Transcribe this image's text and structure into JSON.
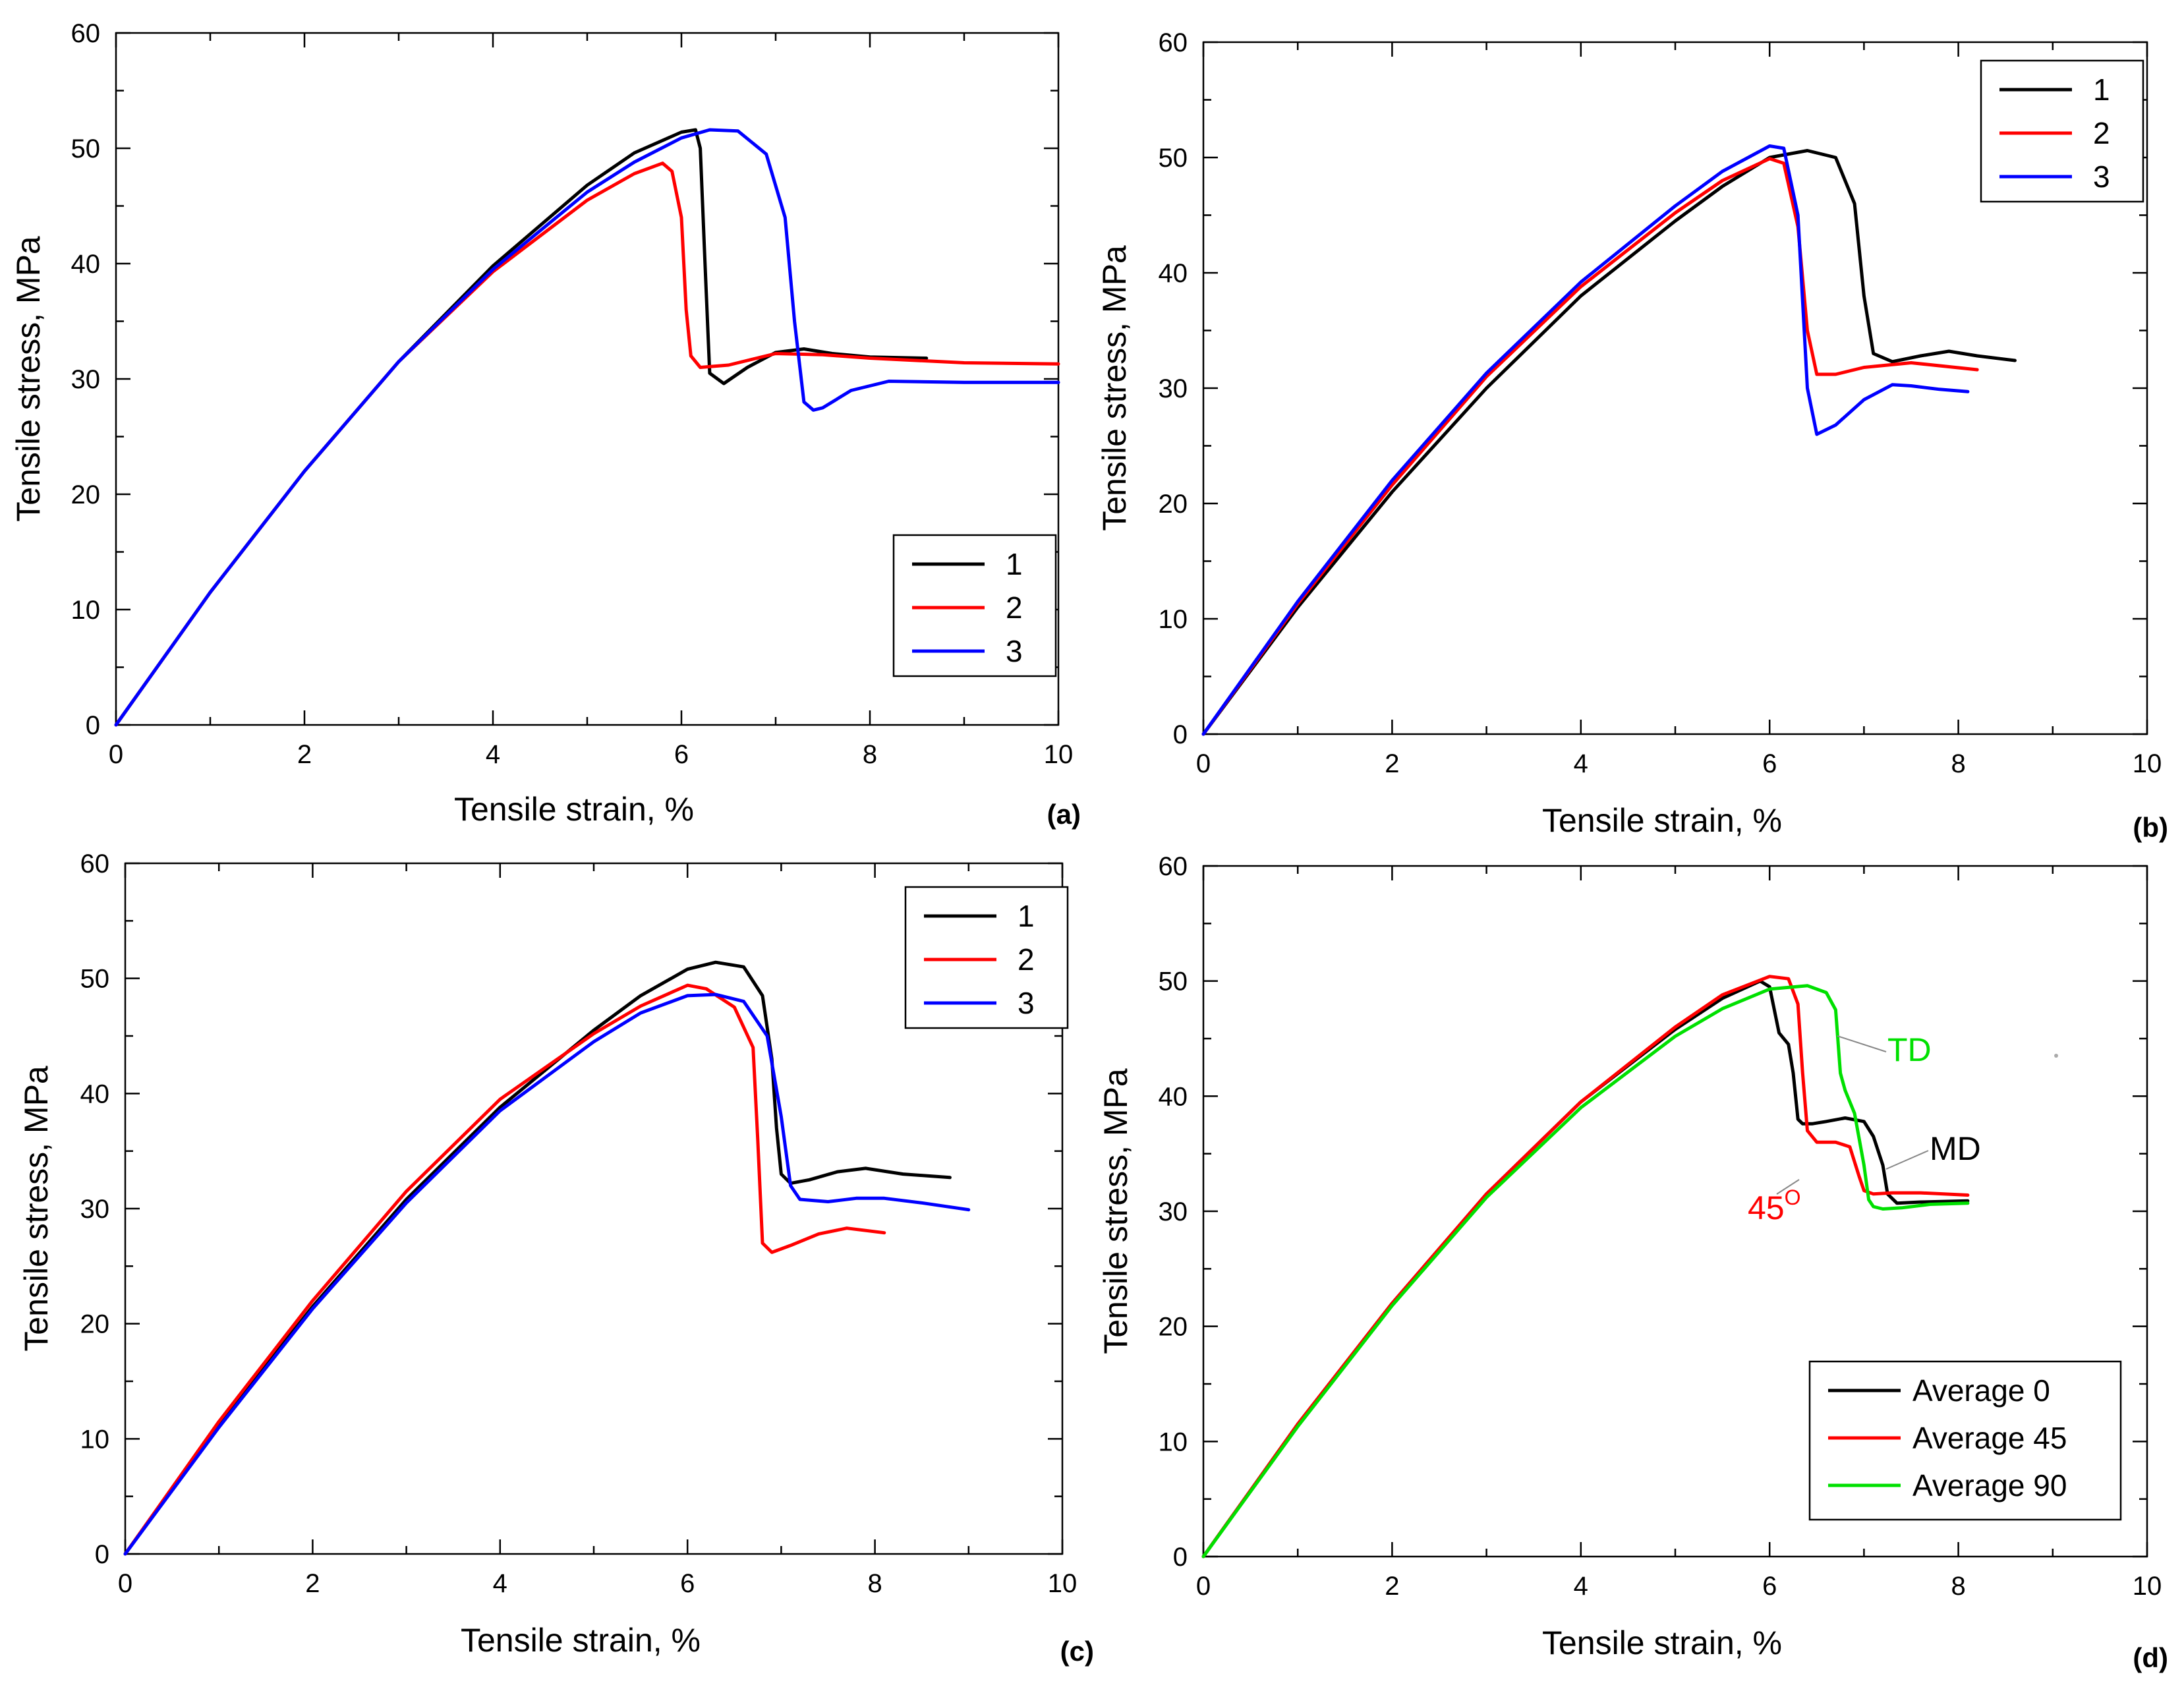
{
  "chart_data": [
    {
      "type": "line",
      "panel_label": "(a)",
      "xlabel": "Tensile strain, %",
      "ylabel": "Tensile stress, MPa",
      "xlim": [
        0,
        10
      ],
      "ylim": [
        0,
        60
      ],
      "xticks": [
        "0",
        "2",
        "4",
        "6",
        "8",
        "10"
      ],
      "yticks": [
        "0",
        "10",
        "20",
        "30",
        "40",
        "50",
        "60"
      ],
      "legend_position": "lower-right",
      "annotations": [],
      "series": [
        {
          "name": "1",
          "color": "#000000",
          "x": [
            0,
            1,
            2,
            3,
            4,
            5,
            5.5,
            6,
            6.15,
            6.2,
            6.25,
            6.3,
            6.45,
            6.7,
            7.0,
            7.3,
            7.6,
            8.0,
            8.6
          ],
          "y": [
            0,
            11.5,
            22,
            31.5,
            39.8,
            46.8,
            49.6,
            51.4,
            51.6,
            50,
            40,
            30.5,
            29.6,
            31,
            32.3,
            32.6,
            32.2,
            31.9,
            31.8
          ]
        },
        {
          "name": "2",
          "color": "#ff0000",
          "x": [
            0,
            1,
            2,
            3,
            4,
            5,
            5.5,
            5.8,
            5.9,
            6.0,
            6.05,
            6.1,
            6.2,
            6.5,
            7.0,
            7.5,
            8.0,
            9.0,
            10.0
          ],
          "y": [
            0,
            11.5,
            22,
            31.5,
            39.3,
            45.5,
            47.8,
            48.7,
            48,
            44,
            36,
            32,
            31,
            31.2,
            32.2,
            32.1,
            31.8,
            31.4,
            31.3
          ]
        },
        {
          "name": "3",
          "color": "#0000ff",
          "x": [
            0,
            1,
            2,
            3,
            4,
            5,
            5.5,
            6,
            6.3,
            6.6,
            6.9,
            7.1,
            7.2,
            7.3,
            7.4,
            7.5,
            7.8,
            8.2,
            9.0,
            10.0
          ],
          "y": [
            0,
            11.5,
            22,
            31.5,
            39.5,
            46.2,
            48.8,
            50.9,
            51.6,
            51.5,
            49.5,
            44,
            35,
            28,
            27.3,
            27.5,
            29,
            29.8,
            29.7,
            29.7
          ]
        }
      ]
    },
    {
      "type": "line",
      "panel_label": "(b)",
      "xlabel": "Tensile strain, %",
      "ylabel": "Tensile stress, MPa",
      "xlim": [
        0,
        10
      ],
      "ylim": [
        0,
        60
      ],
      "xticks": [
        "0",
        "2",
        "4",
        "6",
        "8",
        "10"
      ],
      "yticks": [
        "0",
        "10",
        "20",
        "30",
        "40",
        "50",
        "60"
      ],
      "legend_position": "top-right",
      "annotations": [],
      "series": [
        {
          "name": "1",
          "color": "#000000",
          "x": [
            0,
            1,
            2,
            3,
            4,
            5,
            5.5,
            6,
            6.4,
            6.7,
            6.9,
            7.0,
            7.1,
            7.3,
            7.6,
            7.9,
            8.2,
            8.6
          ],
          "y": [
            0,
            11,
            21,
            30,
            38,
            44.5,
            47.5,
            50,
            50.6,
            50,
            46,
            38,
            33,
            32.3,
            32.8,
            33.2,
            32.8,
            32.4
          ]
        },
        {
          "name": "2",
          "color": "#ff0000",
          "x": [
            0,
            1,
            2,
            3,
            4,
            5,
            5.5,
            6,
            6.15,
            6.3,
            6.4,
            6.5,
            6.7,
            7.0,
            7.5,
            8.2
          ],
          "y": [
            0,
            11.3,
            21.6,
            31,
            38.8,
            45.2,
            48,
            49.9,
            49.5,
            44,
            35,
            31.2,
            31.2,
            31.8,
            32.2,
            31.6
          ]
        },
        {
          "name": "3",
          "color": "#0000ff",
          "x": [
            0,
            1,
            2,
            3,
            4,
            5,
            5.5,
            6,
            6.15,
            6.3,
            6.4,
            6.5,
            6.7,
            7.0,
            7.3,
            7.5,
            7.8,
            8.1
          ],
          "y": [
            0,
            11.5,
            22,
            31.3,
            39.2,
            45.8,
            48.8,
            51,
            50.8,
            45,
            30,
            26,
            26.8,
            29,
            30.3,
            30.2,
            29.9,
            29.7
          ]
        }
      ]
    },
    {
      "type": "line",
      "panel_label": "(c)",
      "xlabel": "Tensile strain, %",
      "ylabel": "Tensile stress, MPa",
      "xlim": [
        0,
        10
      ],
      "ylim": [
        0,
        60
      ],
      "xticks": [
        "0",
        "2",
        "4",
        "6",
        "8",
        "10"
      ],
      "yticks": [
        "0",
        "10",
        "20",
        "30",
        "40",
        "50",
        "60"
      ],
      "legend_position": "top-right",
      "annotations": [],
      "series": [
        {
          "name": "1",
          "color": "#000000",
          "x": [
            0,
            1,
            2,
            3,
            4,
            5,
            5.5,
            6,
            6.3,
            6.6,
            6.8,
            6.9,
            6.95,
            7.0,
            7.1,
            7.3,
            7.6,
            7.9,
            8.3,
            8.8
          ],
          "y": [
            0,
            11.2,
            21.5,
            30.8,
            38.8,
            45.5,
            48.5,
            50.8,
            51.4,
            51,
            48.5,
            43,
            37,
            33,
            32.2,
            32.5,
            33.2,
            33.5,
            33,
            32.7
          ]
        },
        {
          "name": "2",
          "color": "#ff0000",
          "x": [
            0,
            1,
            2,
            3,
            4,
            5,
            5.5,
            6,
            6.2,
            6.5,
            6.7,
            6.75,
            6.8,
            6.9,
            7.1,
            7.4,
            7.7,
            8.1
          ],
          "y": [
            0,
            11.5,
            22,
            31.5,
            39.5,
            45.2,
            47.6,
            49.4,
            49.1,
            47.5,
            44,
            36,
            27,
            26.2,
            26.8,
            27.8,
            28.3,
            27.9
          ]
        },
        {
          "name": "3",
          "color": "#0000ff",
          "x": [
            0,
            1,
            2,
            3,
            4,
            5,
            5.5,
            6,
            6.3,
            6.6,
            6.85,
            7.0,
            7.1,
            7.2,
            7.5,
            7.8,
            8.1,
            8.5,
            9.0
          ],
          "y": [
            0,
            11,
            21.3,
            30.5,
            38.5,
            44.5,
            47,
            48.5,
            48.6,
            48,
            45,
            38,
            32,
            30.8,
            30.6,
            30.9,
            30.9,
            30.5,
            29.9
          ]
        }
      ]
    },
    {
      "type": "line",
      "panel_label": "(d)",
      "xlabel": "Tensile strain, %",
      "ylabel": "Tensile stress, MPa",
      "xlim": [
        0,
        10
      ],
      "ylim": [
        0,
        60
      ],
      "xticks": [
        "0",
        "2",
        "4",
        "6",
        "8",
        "10"
      ],
      "yticks": [
        "0",
        "10",
        "20",
        "30",
        "40",
        "50",
        "60"
      ],
      "legend_position": "bottom-right",
      "annotations": [
        {
          "text": "TD",
          "color": "#00e000"
        },
        {
          "text": "MD",
          "color": "#000000"
        },
        {
          "text": "45",
          "superscript": "O",
          "color": "#ff0000"
        }
      ],
      "series": [
        {
          "name": "Average 0",
          "color": "#000000",
          "x": [
            0,
            1,
            2,
            3,
            4,
            5,
            5.5,
            5.9,
            6.0,
            6.1,
            6.2,
            6.25,
            6.3,
            6.35,
            6.45,
            6.6,
            6.8,
            7.0,
            7.1,
            7.2,
            7.25,
            7.35,
            7.6,
            8.1
          ],
          "y": [
            0,
            11.5,
            22,
            31.5,
            39.5,
            45.8,
            48.5,
            50,
            49.5,
            45.5,
            44.5,
            42,
            38,
            37.6,
            37.6,
            37.8,
            38.1,
            37.8,
            36.5,
            34,
            31.5,
            30.7,
            30.8,
            30.9
          ]
        },
        {
          "name": "Average 45",
          "color": "#ff0000",
          "x": [
            0,
            1,
            2,
            3,
            4,
            5,
            5.5,
            6.0,
            6.2,
            6.3,
            6.35,
            6.4,
            6.5,
            6.7,
            6.85,
            6.95,
            7.0,
            7.1,
            7.3,
            7.6,
            8.1
          ],
          "y": [
            0,
            11.5,
            22,
            31.5,
            39.5,
            46,
            48.8,
            50.4,
            50.2,
            48,
            42,
            37,
            36,
            36,
            35.6,
            33,
            31.8,
            31.5,
            31.6,
            31.6,
            31.4
          ]
        },
        {
          "name": "Average 90",
          "color": "#00e000",
          "x": [
            0,
            1,
            2,
            3,
            4,
            5,
            5.5,
            6.0,
            6.4,
            6.6,
            6.7,
            6.75,
            6.8,
            6.9,
            7.0,
            7.05,
            7.1,
            7.2,
            7.4,
            7.7,
            8.1
          ],
          "y": [
            0,
            11.3,
            21.8,
            31.2,
            39,
            45.2,
            47.6,
            49.3,
            49.6,
            49,
            47.5,
            42,
            40.5,
            38.5,
            34,
            31,
            30.4,
            30.2,
            30.3,
            30.6,
            30.7
          ]
        }
      ]
    }
  ]
}
